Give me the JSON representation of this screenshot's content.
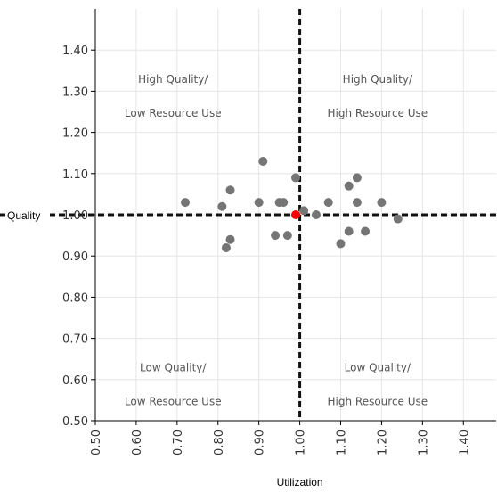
{
  "chart_data": {
    "type": "scatter",
    "xlabel": "Utilization",
    "ylabel": "Quality",
    "xlim": [
      0.5,
      1.48
    ],
    "ylim": [
      0.5,
      1.5
    ],
    "x_ticks": [
      "0.50",
      "0.60",
      "0.70",
      "0.80",
      "0.90",
      "1.00",
      "1.10",
      "1.20",
      "1.30",
      "1.40"
    ],
    "y_ticks": [
      "0.50",
      "0.60",
      "0.70",
      "0.80",
      "0.90",
      "1.00",
      "1.10",
      "1.20",
      "1.30",
      "1.40"
    ],
    "grid": true,
    "reference_lines": {
      "x": 1.0,
      "y": 1.0
    },
    "quadrant_labels": [
      {
        "lines": [
          "High Quality/",
          "Low Resource Use"
        ],
        "x": 0.69,
        "y": 1.32
      },
      {
        "lines": [
          "High Quality/",
          "High Resource Use"
        ],
        "x": 1.19,
        "y": 1.32
      },
      {
        "lines": [
          "Low Quality/",
          "Low Resource Use"
        ],
        "x": 0.69,
        "y": 0.62
      },
      {
        "lines": [
          "Low Quality/",
          "High Resource Use"
        ],
        "x": 1.19,
        "y": 0.62
      }
    ],
    "points": [
      {
        "x": 0.72,
        "y": 1.03
      },
      {
        "x": 0.81,
        "y": 1.02
      },
      {
        "x": 0.83,
        "y": 1.06
      },
      {
        "x": 0.82,
        "y": 0.92
      },
      {
        "x": 0.83,
        "y": 0.94
      },
      {
        "x": 0.9,
        "y": 1.03
      },
      {
        "x": 0.91,
        "y": 1.13
      },
      {
        "x": 0.94,
        "y": 0.95
      },
      {
        "x": 0.95,
        "y": 1.03
      },
      {
        "x": 0.96,
        "y": 1.03
      },
      {
        "x": 0.97,
        "y": 0.95
      },
      {
        "x": 0.99,
        "y": 1.09
      },
      {
        "x": 1.01,
        "y": 1.01
      },
      {
        "x": 1.04,
        "y": 1.0
      },
      {
        "x": 1.07,
        "y": 1.03
      },
      {
        "x": 1.1,
        "y": 0.93
      },
      {
        "x": 1.12,
        "y": 1.07
      },
      {
        "x": 1.12,
        "y": 0.96
      },
      {
        "x": 1.14,
        "y": 1.09
      },
      {
        "x": 1.14,
        "y": 1.03
      },
      {
        "x": 1.16,
        "y": 0.96
      },
      {
        "x": 1.2,
        "y": 1.03
      },
      {
        "x": 1.24,
        "y": 0.99
      }
    ],
    "highlight_point": {
      "x": 0.99,
      "y": 1.0
    },
    "colors": {
      "point": "#757575",
      "highlight": "#ff0000",
      "grid": "#e6e6e6",
      "reference_line": "#111111",
      "axis": "#000000"
    }
  }
}
